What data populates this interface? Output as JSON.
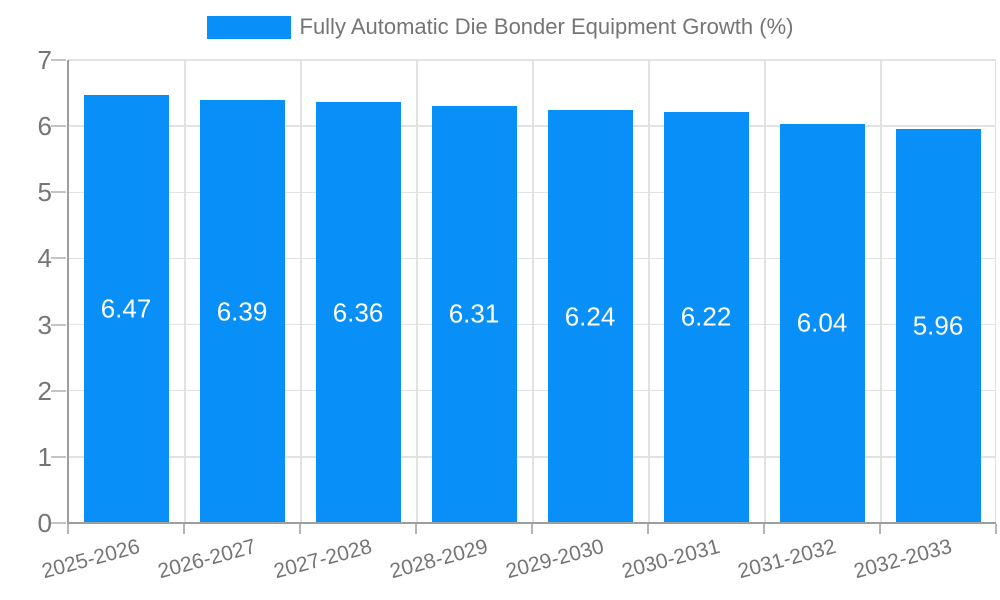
{
  "legend": {
    "label": "Fully Automatic Die Bonder Equipment Growth (%)"
  },
  "chart_data": {
    "type": "bar",
    "title": "Fully Automatic Die Bonder Equipment Growth (%)",
    "series_name": "Fully Automatic Die Bonder Equipment Growth (%)",
    "categories": [
      "2025-2026",
      "2026-2027",
      "2027-2028",
      "2028-2029",
      "2029-2030",
      "2030-2031",
      "2031-2032",
      "2032-2033"
    ],
    "values": [
      6.47,
      6.39,
      6.36,
      6.31,
      6.24,
      6.22,
      6.04,
      5.96
    ],
    "value_labels": [
      "6.47",
      "6.39",
      "6.36",
      "6.31",
      "6.24",
      "6.22",
      "6.04",
      "5.96"
    ],
    "xlabel": "",
    "ylabel": "",
    "ylim": [
      0,
      7
    ],
    "yticks": [
      0,
      1,
      2,
      3,
      4,
      5,
      6,
      7
    ],
    "grid": true,
    "legend_position": "top",
    "value_label_position": "inside-center"
  },
  "colors": {
    "bar": "#0890f8",
    "grid": "#e2e2e2",
    "axis": "#9e9e9e",
    "text": "#757575",
    "value_label": "#ffffff",
    "background": "#ffffff"
  }
}
